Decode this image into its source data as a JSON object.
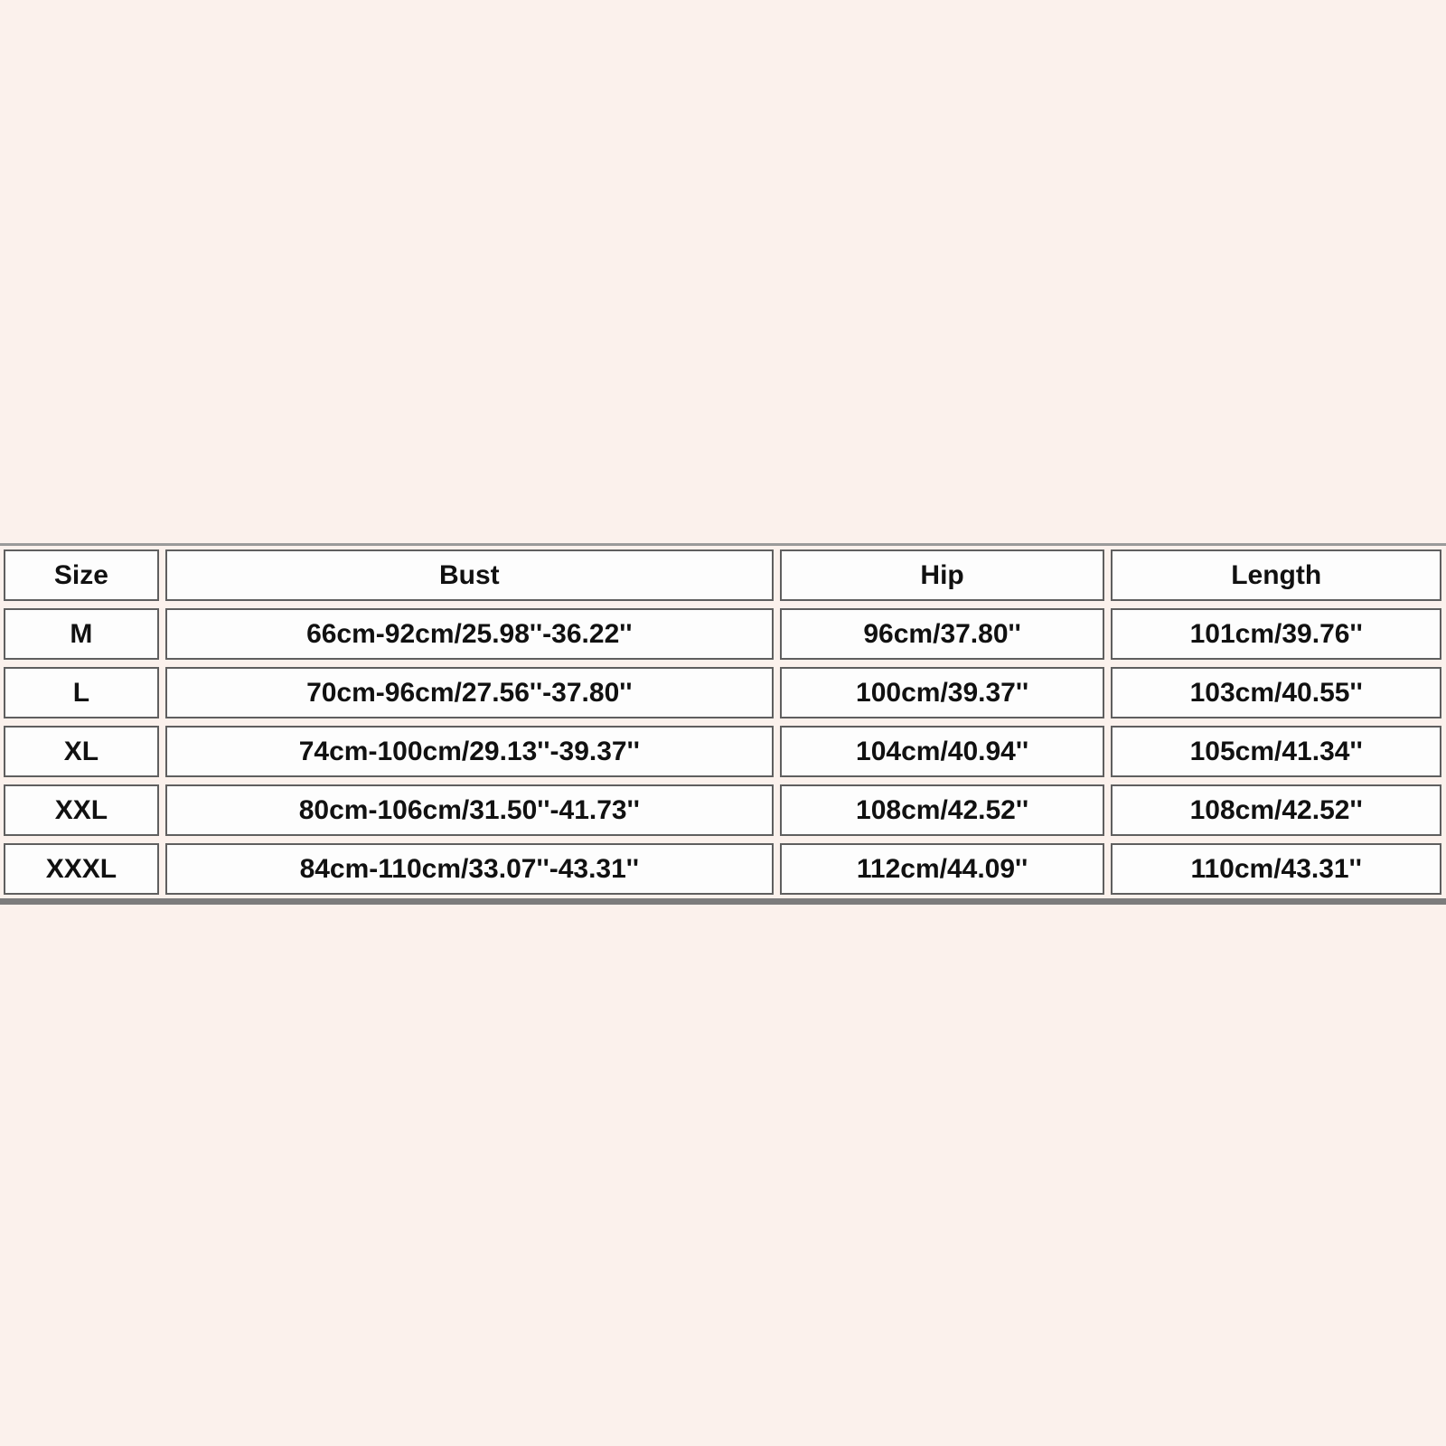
{
  "colors": {
    "page_bg": "#fbf1ec",
    "cell_bg": "#fdfdfd",
    "cell_border": "#5f5f5f",
    "text": "#111111",
    "top_rule": "#9a9a9a",
    "bottom_rule": "#7c7c7c"
  },
  "chart_data": {
    "type": "table",
    "columns": [
      "Size",
      "Bust",
      "Hip",
      "Length"
    ],
    "rows": [
      [
        "M",
        "66cm-92cm/25.98''-36.22''",
        "96cm/37.80''",
        "101cm/39.76''"
      ],
      [
        "L",
        "70cm-96cm/27.56''-37.80''",
        "100cm/39.37''",
        "103cm/40.55''"
      ],
      [
        "XL",
        "74cm-100cm/29.13''-39.37''",
        "104cm/40.94''",
        "105cm/41.34''"
      ],
      [
        "XXL",
        "80cm-106cm/31.50''-41.73''",
        "108cm/42.52''",
        "108cm/42.52''"
      ],
      [
        "XXXL",
        "84cm-110cm/33.07''-43.31''",
        "112cm/44.09''",
        "110cm/43.31''"
      ]
    ]
  }
}
